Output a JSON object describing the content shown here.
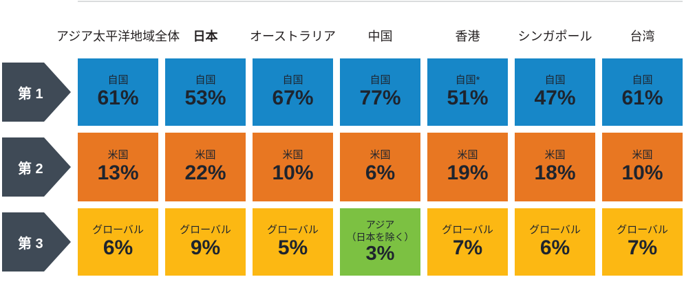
{
  "colors": {
    "rank1": "#1787C8",
    "rank2": "#E87722",
    "rank3": "#FCB813",
    "highlight": "#7CC142",
    "arrow": "#3F4A56",
    "cell_text": "#1E242E",
    "header_text": "#231F20",
    "top_rule": "#DADCDD"
  },
  "header": {
    "columns": [
      {
        "label": "アジア太平洋地域全体",
        "emphasis": false
      },
      {
        "label": "日本",
        "emphasis": true
      },
      {
        "label": "オーストラリア",
        "emphasis": false
      },
      {
        "label": "中国",
        "emphasis": false
      },
      {
        "label": "香港",
        "emphasis": false
      },
      {
        "label": "シンガポール",
        "emphasis": false
      },
      {
        "label": "台湾",
        "emphasis": false
      }
    ]
  },
  "ranks": [
    {
      "label": "第 1"
    },
    {
      "label": "第 2"
    },
    {
      "label": "第 3"
    }
  ],
  "grid": {
    "row1": [
      {
        "label": "自国",
        "value": "61%"
      },
      {
        "label": "自国",
        "value": "53%"
      },
      {
        "label": "自国",
        "value": "67%"
      },
      {
        "label": "自国",
        "value": "77%"
      },
      {
        "label": "自国*",
        "value": "51%"
      },
      {
        "label": "自国",
        "value": "47%"
      },
      {
        "label": "自国",
        "value": "61%"
      }
    ],
    "row2": [
      {
        "label": "米国",
        "value": "13%"
      },
      {
        "label": "米国",
        "value": "22%"
      },
      {
        "label": "米国",
        "value": "10%"
      },
      {
        "label": "米国",
        "value": "6%"
      },
      {
        "label": "米国",
        "value": "19%"
      },
      {
        "label": "米国",
        "value": "18%"
      },
      {
        "label": "米国",
        "value": "10%"
      }
    ],
    "row3": [
      {
        "label": "グローバル",
        "value": "6%"
      },
      {
        "label": "グローバル",
        "value": "9%"
      },
      {
        "label": "グローバル",
        "value": "5%"
      },
      {
        "label": "アジア",
        "label_note": "（日本を除く）",
        "value": "3%",
        "highlight": true
      },
      {
        "label": "グローバル",
        "value": "7%"
      },
      {
        "label": "グローバル",
        "value": "6%"
      },
      {
        "label": "グローバル",
        "value": "7%"
      }
    ]
  },
  "chart_data": {
    "type": "table",
    "title": "",
    "columns": [
      "アジア太平洋地域全体",
      "日本",
      "オーストラリア",
      "中国",
      "香港",
      "シンガポール",
      "台湾"
    ],
    "row_labels": [
      "第 1",
      "第 2",
      "第 3"
    ],
    "series": [
      {
        "rank": "第 1",
        "color": "#1787C8",
        "values": [
          {
            "market": "自国",
            "pct": 61
          },
          {
            "market": "自国",
            "pct": 53
          },
          {
            "market": "自国",
            "pct": 67
          },
          {
            "market": "自国",
            "pct": 77
          },
          {
            "market": "自国*",
            "pct": 51
          },
          {
            "market": "自国",
            "pct": 47
          },
          {
            "market": "自国",
            "pct": 61
          }
        ]
      },
      {
        "rank": "第 2",
        "color": "#E87722",
        "values": [
          {
            "market": "米国",
            "pct": 13
          },
          {
            "market": "米国",
            "pct": 22
          },
          {
            "market": "米国",
            "pct": 10
          },
          {
            "market": "米国",
            "pct": 6
          },
          {
            "market": "米国",
            "pct": 19
          },
          {
            "market": "米国",
            "pct": 18
          },
          {
            "market": "米国",
            "pct": 10
          }
        ]
      },
      {
        "rank": "第 3",
        "color": "#FCB813",
        "values": [
          {
            "market": "グローバル",
            "pct": 6
          },
          {
            "market": "グローバル",
            "pct": 9
          },
          {
            "market": "グローバル",
            "pct": 5
          },
          {
            "market": "アジア（日本を除く）",
            "pct": 3,
            "highlight": true,
            "highlight_color": "#7CC142"
          },
          {
            "market": "グローバル",
            "pct": 7
          },
          {
            "market": "グローバル",
            "pct": 6
          },
          {
            "market": "グローバル",
            "pct": 7
          }
        ]
      }
    ],
    "layout": {
      "grid": false,
      "legend": "none"
    }
  }
}
